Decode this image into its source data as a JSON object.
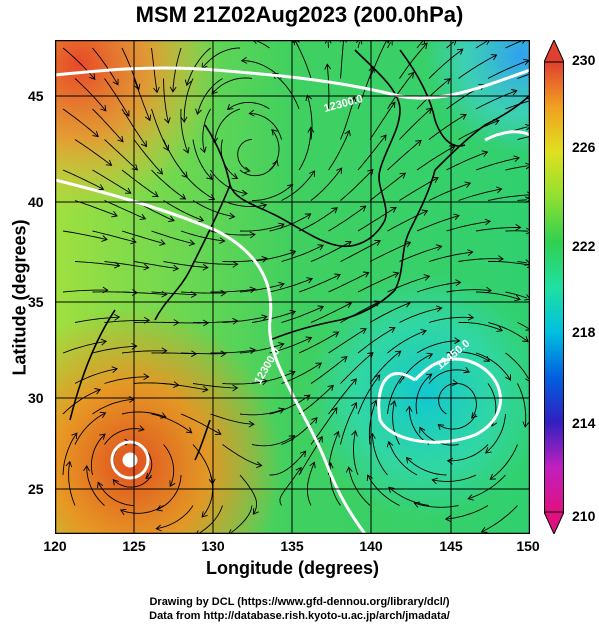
{
  "title": "MSM 21Z02Aug2023 (200.0hPa)",
  "map": {
    "xlabel": "Longitude (degrees)",
    "ylabel": "Latitude  (degrees)",
    "x_ticks": [
      "120",
      "125",
      "130",
      "135",
      "140",
      "145",
      "150"
    ],
    "y_ticks": [
      "45",
      "40",
      "35",
      "30",
      "25"
    ],
    "lon_range": [
      120,
      150
    ],
    "lat_range": [
      22.4,
      47.6
    ],
    "contour_labels": [
      "12300.0",
      "12300.0",
      "12450.0"
    ],
    "field": "geopotential height contours (white) over shaded field with streamlines"
  },
  "colorbar": {
    "ticks": [
      "230",
      "226",
      "222",
      "218",
      "214",
      "210"
    ],
    "range": [
      210,
      230
    ],
    "colors": [
      "#e01080",
      "#c020c0",
      "#3020c0",
      "#0060e0",
      "#00c0e0",
      "#20e0a0",
      "#30d050",
      "#90e030",
      "#e0e020",
      "#f0a020",
      "#e04030"
    ]
  },
  "credits": {
    "line1": "Drawing by DCL (https://www.gfd-dennou.org/library/dcl/)",
    "line2": "Data from http://database.rish.kyoto-u.ac.jp/arch/jmadata/"
  }
}
